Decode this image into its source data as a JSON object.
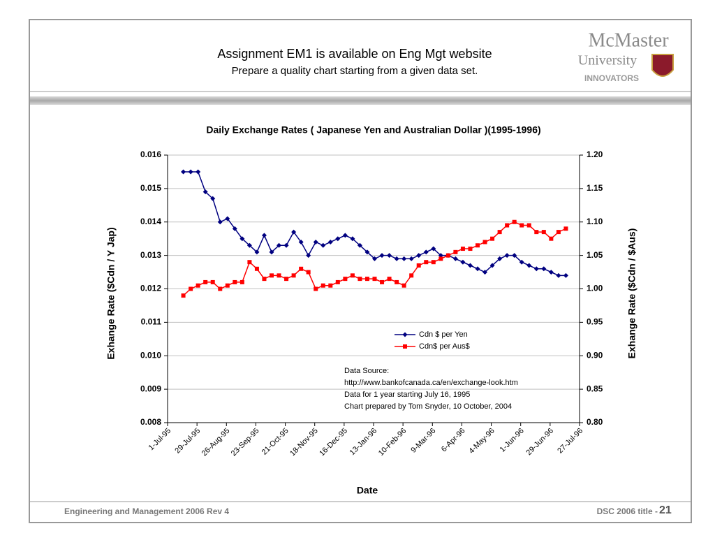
{
  "header": {
    "title": "Assignment EM1 is available on Eng Mgt website",
    "subtitle": "Prepare a quality chart starting from a given data set."
  },
  "logo": {
    "name": "McMaster",
    "line2": "University",
    "line3": "INNOVATORS"
  },
  "footer": {
    "left": "Engineering and Management 2006   Rev 4",
    "right": "DSC 2006  title  -",
    "page": "21"
  },
  "chart_data": {
    "type": "line",
    "title": "Daily Exchange Rates ( Japanese Yen and Australian Dollar )(1995-1996)",
    "x_label": "Date",
    "y_label": "Exhange Rate ($Cdn / Y Jap)",
    "y2_label": "Exhange Rate ($Cdn / $Aus)",
    "annotation": [
      "Data Source:",
      "http://www.bankofcanada.ca/en/exchange-look.htm",
      "Data for 1 year starting July 16, 1995",
      "Chart prepared by Tom Snyder, 10 October, 2004"
    ],
    "grid": true,
    "legend": "center",
    "x": [
      "1995-07-16",
      "1995-07-23",
      "1995-07-30",
      "1995-08-06",
      "1995-08-13",
      "1995-08-20",
      "1995-08-27",
      "1995-09-03",
      "1995-09-10",
      "1995-09-17",
      "1995-09-24",
      "1995-10-01",
      "1995-10-08",
      "1995-10-15",
      "1995-10-22",
      "1995-10-29",
      "1995-11-05",
      "1995-11-12",
      "1995-11-19",
      "1995-11-26",
      "1995-12-03",
      "1995-12-10",
      "1995-12-17",
      "1995-12-24",
      "1995-12-31",
      "1996-01-07",
      "1996-01-14",
      "1996-01-21",
      "1996-01-28",
      "1996-02-04",
      "1996-02-11",
      "1996-02-18",
      "1996-02-25",
      "1996-03-03",
      "1996-03-10",
      "1996-03-17",
      "1996-03-24",
      "1996-03-31",
      "1996-04-07",
      "1996-04-14",
      "1996-04-21",
      "1996-04-28",
      "1996-05-05",
      "1996-05-12",
      "1996-05-19",
      "1996-05-26",
      "1996-06-02",
      "1996-06-09",
      "1996-06-16",
      "1996-06-23",
      "1996-06-30",
      "1996-07-07",
      "1996-07-14"
    ],
    "xlim": [
      "1995-07-01",
      "1996-07-27"
    ],
    "xticks": [
      {
        "value": "1995-07-01",
        "label": "1-Jul-95"
      },
      {
        "value": "1995-07-29",
        "label": "29-Jul-95"
      },
      {
        "value": "1995-08-26",
        "label": "26-Aug-95"
      },
      {
        "value": "1995-09-23",
        "label": "23-Sep-95"
      },
      {
        "value": "1995-10-21",
        "label": "21-Oct-95"
      },
      {
        "value": "1995-11-18",
        "label": "18-Nov-95"
      },
      {
        "value": "1995-12-16",
        "label": "16-Dec-95"
      },
      {
        "value": "1996-01-13",
        "label": "13-Jan-96"
      },
      {
        "value": "1996-02-10",
        "label": "10-Feb-96"
      },
      {
        "value": "1996-03-09",
        "label": "9-Mar-96"
      },
      {
        "value": "1996-04-06",
        "label": "6-Apr-96"
      },
      {
        "value": "1996-05-04",
        "label": "4-May-96"
      },
      {
        "value": "1996-06-01",
        "label": "1-Jun-96"
      },
      {
        "value": "1996-06-29",
        "label": "29-Jun-96"
      },
      {
        "value": "1996-07-27",
        "label": "27-Jul-96"
      }
    ],
    "ylim": [
      0.008,
      0.016
    ],
    "yticks": [
      0.008,
      0.009,
      {
        "value": 0.01,
        "label": "0.010"
      },
      0.011,
      0.012,
      0.013,
      0.014,
      0.015,
      0.016
    ],
    "y2lim": [
      0.8,
      1.2
    ],
    "y2ticks": [
      {
        "value": 0.8,
        "label": "0.80"
      },
      0.85,
      {
        "value": 0.9,
        "label": "0.90"
      },
      0.95,
      {
        "value": 1,
        "label": "1.00"
      },
      1.05,
      {
        "value": 1.1,
        "label": "1.10"
      },
      1.15,
      {
        "value": 1.2,
        "label": "1.20"
      }
    ],
    "series": [
      {
        "name": "Cdn $ per Yen",
        "color": "#000080",
        "marker": "diamond",
        "values": [
          0.0155,
          0.0155,
          0.0155,
          0.0149,
          0.0147,
          0.014,
          0.0141,
          0.0138,
          0.0135,
          0.0133,
          0.0131,
          0.0136,
          0.0131,
          0.0133,
          0.0133,
          0.0137,
          0.0134,
          0.013,
          0.0134,
          0.0133,
          0.0134,
          0.0135,
          0.0136,
          0.0135,
          0.0133,
          0.0131,
          0.0129,
          0.013,
          0.013,
          0.0129,
          0.0129,
          0.0129,
          0.013,
          0.0131,
          0.0132,
          0.013,
          0.013,
          0.0129,
          0.0128,
          0.0127,
          0.0126,
          0.0125,
          0.0127,
          0.0129,
          0.013,
          0.013,
          0.0128,
          0.0127,
          0.0126,
          0.0126,
          0.0125,
          0.0124,
          0.0124
        ]
      },
      {
        "name": "Cdn$ per Aus$",
        "color": "#ff0000",
        "marker": "square",
        "axis": "y2",
        "values": [
          0.99,
          1,
          1.005,
          1.01,
          1.01,
          1,
          1.005,
          1.01,
          1.01,
          1.04,
          1.03,
          1.015,
          1.02,
          1.02,
          1.015,
          1.02,
          1.03,
          1.025,
          1,
          1.005,
          1.005,
          1.01,
          1.015,
          1.02,
          1.015,
          1.015,
          1.015,
          1.01,
          1.015,
          1.01,
          1.005,
          1.02,
          1.035,
          1.04,
          1.04,
          1.045,
          1.05,
          1.055,
          1.06,
          1.06,
          1.065,
          1.07,
          1.075,
          1.085,
          1.095,
          1.1,
          1.095,
          1.095,
          1.085,
          1.085,
          1.075,
          1.085,
          1.09
        ]
      }
    ]
  }
}
